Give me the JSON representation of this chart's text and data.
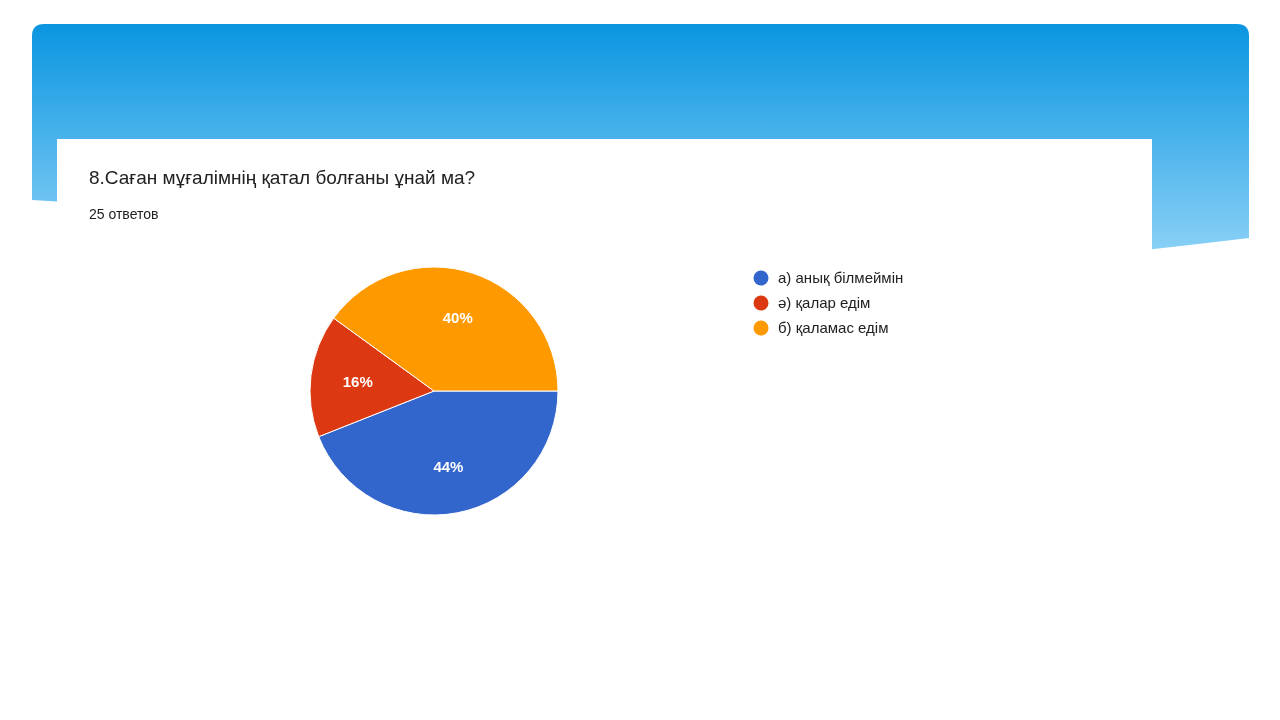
{
  "chart_data": {
    "type": "pie",
    "title": "8.Саған мұғалімнің қатал болғаны ұнай ма?",
    "subtitle": "25 ответов",
    "categories": [
      "а) анық білмеймін",
      "ә) қалар едім",
      "б) қаламас едім"
    ],
    "values": [
      44,
      16,
      40
    ],
    "colors": [
      "#3366cc",
      "#dc3912",
      "#ff9900"
    ],
    "value_labels": [
      "44%",
      "16%",
      "40%"
    ],
    "legend": "right"
  }
}
